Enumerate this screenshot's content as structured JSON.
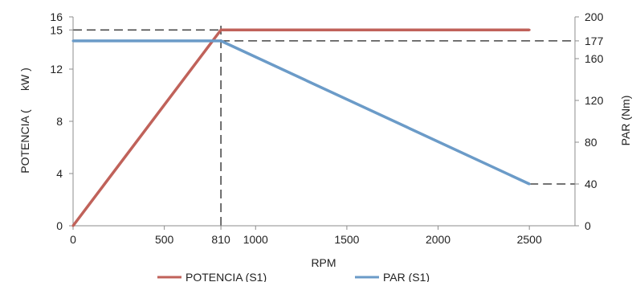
{
  "chart_data": {
    "type": "line",
    "xlabel": "RPM",
    "ylabel_left": "POTENCIA (      kW )",
    "ylabel_right": "PAR (Nm)",
    "xlim": [
      0,
      2750
    ],
    "ylim_left": [
      0,
      16
    ],
    "ylim_right": [
      0,
      200
    ],
    "x_ticks": [
      0,
      500,
      810,
      1000,
      1500,
      2000,
      2500
    ],
    "y_left_ticks": [
      0,
      4,
      8,
      12,
      15,
      16
    ],
    "y_right_ticks": [
      0,
      40,
      80,
      120,
      160,
      177,
      200
    ],
    "grid": false,
    "legend_position": "bottom",
    "series": [
      {
        "name": "POTENCIA (S1)",
        "axis": "left",
        "color": "#c0625a",
        "x": [
          0,
          810,
          2500
        ],
        "y": [
          0,
          15,
          15
        ]
      },
      {
        "name": "PAR (S1)",
        "axis": "right",
        "color": "#6b9bc8",
        "x": [
          0,
          810,
          2500
        ],
        "y": [
          177,
          177,
          40
        ]
      }
    ],
    "reference_lines": [
      {
        "type": "vertical",
        "x": 810,
        "from_y_left": 0,
        "to_y_left": 15
      },
      {
        "type": "horizontal",
        "axis": "left",
        "y": 15,
        "from_x": 0,
        "to_x": 810
      },
      {
        "type": "horizontal",
        "axis": "right",
        "y": 177,
        "from_x": 810,
        "to_x": 2750
      },
      {
        "type": "horizontal",
        "axis": "right",
        "y": 40,
        "from_x": 2500,
        "to_x": 2750
      }
    ]
  }
}
